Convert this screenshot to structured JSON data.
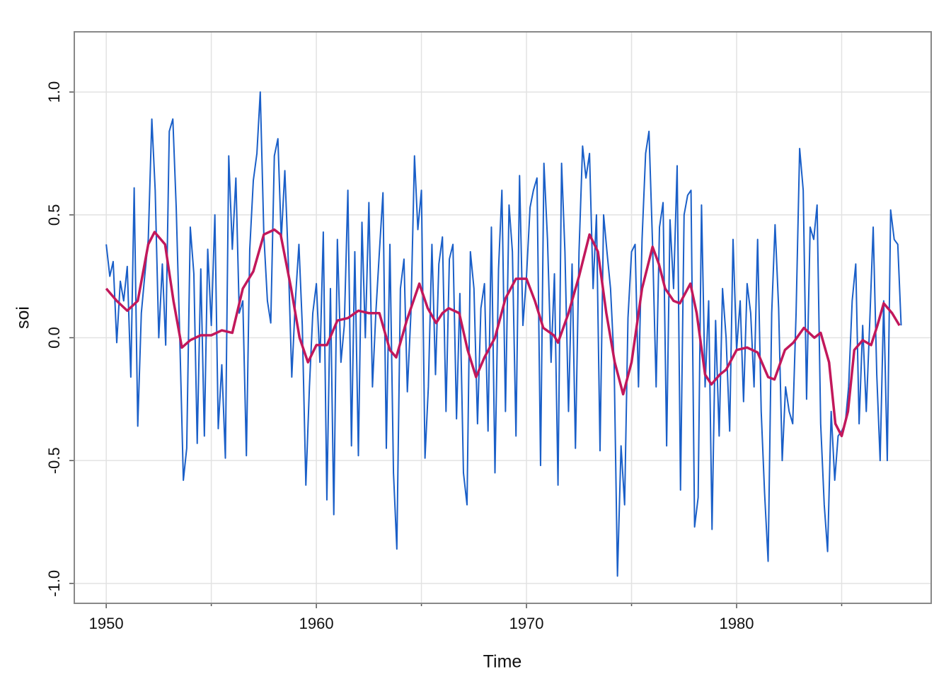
{
  "chart_data": {
    "type": "line",
    "xlabel": "Time",
    "ylabel": "soi",
    "xlim": [
      1948.48,
      1989.26
    ],
    "ylim": [
      -1.081,
      1.245
    ],
    "xticks": [
      1950,
      1960,
      1970,
      1980
    ],
    "x_minor_ticks": [
      1955,
      1965,
      1975,
      1985
    ],
    "yticks": [
      {
        "value": -1,
        "label": "-1.0"
      },
      {
        "value": -0.5,
        "label": "-0.5"
      },
      {
        "value": 0,
        "label": "0.0"
      },
      {
        "value": 0.5,
        "label": "0.5"
      },
      {
        "value": 1,
        "label": "1.0"
      }
    ],
    "grid": true,
    "series": [
      {
        "color": "#1a5fc8",
        "width": 2,
        "x": [
          1950,
          1950.17,
          1950.33,
          1950.5,
          1950.67,
          1950.83,
          1951,
          1951.17,
          1951.33,
          1951.5,
          1951.67,
          1951.83,
          1952,
          1952.17,
          1952.33,
          1952.5,
          1952.67,
          1952.83,
          1953,
          1953.17,
          1953.33,
          1953.5,
          1953.67,
          1953.83,
          1954,
          1954.17,
          1954.33,
          1954.5,
          1954.67,
          1954.83,
          1955,
          1955.17,
          1955.33,
          1955.5,
          1955.67,
          1955.83,
          1956,
          1956.17,
          1956.33,
          1956.5,
          1956.67,
          1956.83,
          1957,
          1957.17,
          1957.33,
          1957.5,
          1957.67,
          1957.83,
          1958,
          1958.17,
          1958.33,
          1958.5,
          1958.67,
          1958.83,
          1959,
          1959.17,
          1959.33,
          1959.5,
          1959.67,
          1959.83,
          1960,
          1960.17,
          1960.33,
          1960.5,
          1960.67,
          1960.83,
          1961,
          1961.17,
          1961.33,
          1961.5,
          1961.67,
          1961.83,
          1962,
          1962.17,
          1962.33,
          1962.5,
          1962.67,
          1962.83,
          1963,
          1963.17,
          1963.33,
          1963.5,
          1963.67,
          1963.83,
          1964,
          1964.17,
          1964.33,
          1964.5,
          1964.67,
          1964.83,
          1965,
          1965.17,
          1965.33,
          1965.5,
          1965.67,
          1965.83,
          1966,
          1966.17,
          1966.33,
          1966.5,
          1966.67,
          1966.83,
          1967,
          1967.17,
          1967.33,
          1967.5,
          1967.67,
          1967.83,
          1968,
          1968.17,
          1968.33,
          1968.5,
          1968.67,
          1968.83,
          1969,
          1969.17,
          1969.33,
          1969.5,
          1969.67,
          1969.83,
          1970,
          1970.17,
          1970.33,
          1970.5,
          1970.67,
          1970.83,
          1971,
          1971.17,
          1971.33,
          1971.5,
          1971.67,
          1971.83,
          1972,
          1972.17,
          1972.33,
          1972.5,
          1972.67,
          1972.83,
          1973,
          1973.17,
          1973.33,
          1973.5,
          1973.67,
          1973.83,
          1974,
          1974.17,
          1974.33,
          1974.5,
          1974.67,
          1974.83,
          1975,
          1975.17,
          1975.33,
          1975.5,
          1975.67,
          1975.83,
          1976,
          1976.17,
          1976.33,
          1976.5,
          1976.67,
          1976.83,
          1977,
          1977.17,
          1977.33,
          1977.5,
          1977.67,
          1977.83,
          1978,
          1978.17,
          1978.33,
          1978.5,
          1978.67,
          1978.83,
          1979,
          1979.17,
          1979.33,
          1979.5,
          1979.67,
          1979.83,
          1980,
          1980.17,
          1980.33,
          1980.5,
          1980.67,
          1980.83,
          1981,
          1981.17,
          1981.33,
          1981.5,
          1981.67,
          1981.83,
          1982,
          1982.17,
          1982.33,
          1982.5,
          1982.67,
          1982.83,
          1983,
          1983.17,
          1983.33,
          1983.5,
          1983.67,
          1983.83,
          1984,
          1984.17,
          1984.33,
          1984.5,
          1984.67,
          1984.83,
          1985,
          1985.17,
          1985.33,
          1985.5,
          1985.67,
          1985.83,
          1986,
          1986.17,
          1986.33,
          1986.5,
          1986.67,
          1986.83,
          1987,
          1987.17,
          1987.33,
          1987.5,
          1987.67,
          1987.83
        ],
        "values": [
          0.38,
          0.25,
          0.31,
          -0.02,
          0.23,
          0.15,
          0.29,
          -0.16,
          0.61,
          -0.36,
          0.1,
          0.25,
          0.4,
          0.89,
          0.6,
          0.0,
          0.3,
          -0.03,
          0.84,
          0.89,
          0.53,
          0.0,
          -0.58,
          -0.45,
          0.45,
          0.26,
          -0.43,
          0.28,
          -0.4,
          0.36,
          0.05,
          0.5,
          -0.37,
          -0.11,
          -0.49,
          0.74,
          0.36,
          0.65,
          0.1,
          0.15,
          -0.48,
          0.36,
          0.64,
          0.75,
          1.0,
          0.42,
          0.15,
          0.06,
          0.74,
          0.81,
          0.4,
          0.68,
          0.3,
          -0.16,
          0.15,
          0.38,
          0.05,
          -0.6,
          -0.2,
          0.1,
          0.22,
          -0.1,
          0.43,
          -0.66,
          0.2,
          -0.72,
          0.4,
          -0.1,
          0.05,
          0.6,
          -0.44,
          0.35,
          -0.48,
          0.47,
          0.0,
          0.55,
          -0.2,
          0.1,
          0.35,
          0.59,
          -0.45,
          0.38,
          -0.55,
          -0.86,
          0.2,
          0.32,
          -0.22,
          0.1,
          0.74,
          0.44,
          0.6,
          -0.49,
          -0.2,
          0.38,
          -0.15,
          0.3,
          0.41,
          -0.3,
          0.32,
          0.38,
          -0.33,
          0.18,
          -0.55,
          -0.68,
          0.35,
          0.2,
          -0.35,
          0.12,
          0.22,
          -0.38,
          0.45,
          -0.55,
          0.28,
          0.6,
          -0.3,
          0.54,
          0.35,
          -0.4,
          0.66,
          0.05,
          0.25,
          0.53,
          0.6,
          0.65,
          -0.52,
          0.71,
          0.4,
          -0.1,
          0.26,
          -0.6,
          0.71,
          0.35,
          -0.3,
          0.3,
          -0.45,
          0.35,
          0.78,
          0.65,
          0.75,
          0.2,
          0.5,
          -0.46,
          0.5,
          0.35,
          0.2,
          -0.1,
          -0.97,
          -0.44,
          -0.68,
          0.08,
          0.35,
          0.38,
          -0.2,
          0.4,
          0.75,
          0.84,
          0.38,
          -0.2,
          0.45,
          0.55,
          -0.44,
          0.48,
          0.2,
          0.7,
          -0.62,
          0.5,
          0.58,
          0.6,
          -0.77,
          -0.65,
          0.54,
          -0.2,
          0.15,
          -0.78,
          0.07,
          -0.4,
          0.2,
          0.0,
          -0.38,
          0.4,
          -0.05,
          0.15,
          -0.26,
          0.22,
          0.1,
          -0.2,
          0.4,
          -0.3,
          -0.63,
          -0.91,
          0.1,
          0.46,
          0.12,
          -0.5,
          -0.2,
          -0.3,
          -0.35,
          0.1,
          0.77,
          0.6,
          -0.25,
          0.45,
          0.4,
          0.54,
          -0.35,
          -0.68,
          -0.87,
          -0.3,
          -0.58,
          -0.4,
          -0.38,
          -0.35,
          -0.2,
          0.15,
          0.3,
          -0.35,
          0.05,
          -0.3,
          0.05,
          0.45,
          -0.15,
          -0.5,
          0.15,
          -0.5,
          0.52,
          0.4,
          0.38,
          0.05
        ]
      },
      {
        "color": "#c2185b",
        "width": 3.5,
        "x": [
          1950,
          1950.5,
          1951,
          1951.5,
          1952,
          1952.3,
          1952.8,
          1953.2,
          1953.6,
          1954,
          1954.5,
          1955,
          1955.5,
          1956,
          1956.5,
          1957,
          1957.5,
          1958,
          1958.3,
          1958.8,
          1959.2,
          1959.6,
          1960,
          1960.5,
          1961,
          1961.5,
          1962,
          1962.5,
          1963,
          1963.5,
          1963.8,
          1964.3,
          1964.9,
          1965.3,
          1965.7,
          1966,
          1966.3,
          1966.8,
          1967.2,
          1967.6,
          1968,
          1968.5,
          1969,
          1969.5,
          1970,
          1970.4,
          1970.8,
          1971.3,
          1971.5,
          1972,
          1972.5,
          1973,
          1973.4,
          1973.8,
          1974.2,
          1974.6,
          1975,
          1975.5,
          1976,
          1976.3,
          1976.6,
          1977,
          1977.3,
          1977.8,
          1978.1,
          1978.5,
          1978.8,
          1979.2,
          1979.5,
          1980,
          1980.5,
          1981,
          1981.5,
          1981.8,
          1982.3,
          1982.7,
          1983.2,
          1983.7,
          1984,
          1984.4,
          1984.7,
          1985,
          1985.3,
          1985.6,
          1986,
          1986.4,
          1986.7,
          1987,
          1987.4,
          1987.75
        ],
        "values": [
          0.2,
          0.15,
          0.11,
          0.15,
          0.38,
          0.43,
          0.38,
          0.15,
          -0.04,
          -0.01,
          0.01,
          0.01,
          0.03,
          0.02,
          0.2,
          0.27,
          0.42,
          0.44,
          0.42,
          0.2,
          0.0,
          -0.1,
          -0.03,
          -0.03,
          0.07,
          0.08,
          0.11,
          0.1,
          0.1,
          -0.05,
          -0.08,
          0.07,
          0.22,
          0.12,
          0.06,
          0.1,
          0.12,
          0.1,
          -0.05,
          -0.16,
          -0.08,
          0.0,
          0.16,
          0.24,
          0.24,
          0.15,
          0.04,
          0.01,
          -0.02,
          0.1,
          0.25,
          0.42,
          0.35,
          0.1,
          -0.1,
          -0.23,
          -0.1,
          0.2,
          0.37,
          0.3,
          0.2,
          0.15,
          0.14,
          0.22,
          0.1,
          -0.15,
          -0.19,
          -0.15,
          -0.13,
          -0.05,
          -0.04,
          -0.06,
          -0.16,
          -0.17,
          -0.05,
          -0.02,
          0.04,
          0.0,
          0.02,
          -0.1,
          -0.35,
          -0.4,
          -0.3,
          -0.05,
          -0.01,
          -0.03,
          0.05,
          0.14,
          0.1,
          0.05
        ]
      }
    ]
  }
}
